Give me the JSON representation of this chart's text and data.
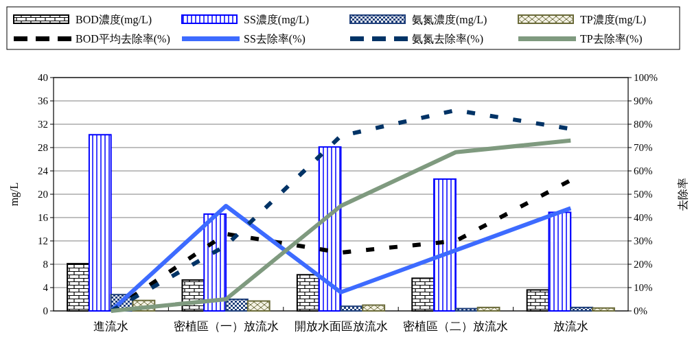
{
  "chart_data": {
    "type": "bar",
    "ylabel": "mg/L",
    "y2label": "去除率",
    "categories": [
      "進流水",
      "密植區（一）放流水",
      "開放水面區放流水",
      "密植區（二）放流水",
      "放流水"
    ],
    "series": [
      {
        "name": "BOD濃度(mg/L)",
        "color": "#000000",
        "values": [
          8.1,
          5.3,
          6.2,
          5.6,
          3.6
        ]
      },
      {
        "name": "SS濃度(mg/L)",
        "color": "#0000ff",
        "values": [
          30.2,
          16.6,
          28.1,
          22.6,
          16.9
        ]
      },
      {
        "name": "氨氮濃度(mg/L)",
        "color": "#1f3f7a",
        "values": [
          2.8,
          2.0,
          0.8,
          0.4,
          0.6
        ]
      },
      {
        "name": "TP濃度(mg/L)",
        "color": "#6b6b3a",
        "values": [
          1.8,
          1.7,
          1.0,
          0.6,
          0.5
        ]
      },
      {
        "name": "BOD平均去除率(%)",
        "type": "line",
        "axis": "y2",
        "line_style": "dashed",
        "color": "#000000",
        "values": [
          0,
          33,
          25,
          30,
          56
        ]
      },
      {
        "name": "SS去除率(%)",
        "type": "line",
        "axis": "y2",
        "line_style": "solid",
        "color": "#3d6bff",
        "values": [
          0,
          45,
          8,
          26,
          44
        ]
      },
      {
        "name": "氨氮去除率(%)",
        "type": "line",
        "axis": "y2",
        "line_style": "dashed",
        "color": "#003366",
        "values": [
          0,
          28,
          75,
          86,
          78
        ]
      },
      {
        "name": "TP去除率(%)",
        "type": "line",
        "axis": "y2",
        "line_style": "solid",
        "color": "#7f9a7f",
        "values": [
          0,
          5,
          45,
          68,
          73
        ]
      }
    ],
    "ylim": [
      0,
      40
    ],
    "yticks": [
      0,
      4,
      8,
      12,
      16,
      20,
      24,
      28,
      32,
      36,
      40
    ],
    "y2lim": [
      0,
      100
    ],
    "y2ticks": [
      {
        "value": 0,
        "label": "0%"
      },
      {
        "value": 10,
        "label": "10%"
      },
      {
        "value": 20,
        "label": "20%"
      },
      {
        "value": 30,
        "label": "30%"
      },
      {
        "value": 40,
        "label": "40%"
      },
      {
        "value": 50,
        "label": "50%"
      },
      {
        "value": 60,
        "label": "60%"
      },
      {
        "value": 70,
        "label": "70%"
      },
      {
        "value": 80,
        "label": "80%"
      },
      {
        "value": 90,
        "label": "90%"
      },
      {
        "value": 100,
        "label": "100%"
      }
    ],
    "grid": "y",
    "legend": "top"
  }
}
